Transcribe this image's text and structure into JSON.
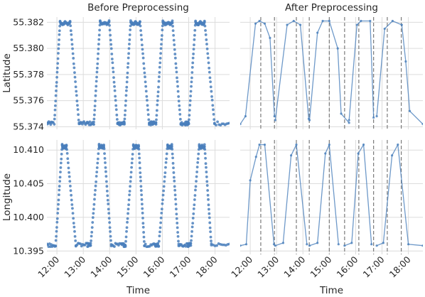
{
  "chart_data": [
    {
      "type": "scatter",
      "panel": "top-left",
      "title": "Before Preprocessing",
      "ylabel": "Latitude",
      "xlabel": "",
      "yticks": [
        "55.374",
        "55.376",
        "55.378",
        "55.380",
        "55.382"
      ],
      "xticks": [],
      "ylim": [
        55.3738,
        55.3824
      ],
      "xlim": [
        11.62,
        18.55
      ],
      "grid": true,
      "color": "#4a7fbc",
      "cycles": [
        {
          "low1": [
            11.62,
            11.86
          ],
          "rise": [
            11.9,
            12.12
          ],
          "high": [
            12.12,
            12.5
          ],
          "fall": [
            12.5,
            12.84
          ],
          "low2": [
            12.84,
            13.15
          ]
        },
        {
          "low1": [
            13.15,
            13.4
          ],
          "rise": [
            13.4,
            13.64
          ],
          "high": [
            13.64,
            13.98
          ],
          "fall": [
            13.98,
            14.3
          ],
          "low2": [
            14.3,
            14.46
          ]
        },
        {
          "low1": [
            14.46,
            14.56
          ],
          "rise": [
            14.56,
            14.8
          ],
          "high": [
            14.8,
            15.15
          ],
          "fall": [
            15.15,
            15.5
          ],
          "low2": [
            15.5,
            15.65
          ]
        },
        {
          "low1": [
            15.65,
            15.76
          ],
          "rise": [
            15.76,
            16.02
          ],
          "high": [
            16.02,
            16.38
          ],
          "fall": [
            16.38,
            16.7
          ],
          "low2": [
            16.7,
            16.88
          ]
        },
        {
          "low1": [
            16.88,
            17.0
          ],
          "rise": [
            17.0,
            17.26
          ],
          "high": [
            17.26,
            17.6
          ],
          "fall": [
            17.6,
            17.98
          ],
          "low2": [
            17.98,
            18.55
          ]
        }
      ],
      "low_value": 55.3742,
      "high_value": 55.3821
    },
    {
      "type": "line",
      "panel": "top-right",
      "title": "After Preprocessing",
      "ylabel": "",
      "xlabel": "",
      "yticks": [],
      "xticks": [],
      "ylim": [
        55.3738,
        55.3824
      ],
      "xlim": [
        11.62,
        18.55
      ],
      "grid": true,
      "color": "#4a7fbc",
      "vlines": [
        12.4,
        12.92,
        13.75,
        14.24,
        15.0,
        15.58,
        16.12,
        16.68,
        17.2,
        17.73
      ],
      "vline_color": "#7a7a7a",
      "segments": [
        [
          [
            11.62,
            55.3742
          ],
          [
            11.82,
            55.3748
          ],
          [
            12.2,
            55.3819
          ],
          [
            12.35,
            55.3821
          ],
          [
            12.55,
            55.3819
          ],
          [
            12.75,
            55.3808
          ],
          [
            12.92,
            55.3748
          ]
        ],
        [
          [
            12.95,
            55.3745
          ],
          [
            13.4,
            55.3818
          ],
          [
            13.65,
            55.3821
          ],
          [
            13.9,
            55.3818
          ],
          [
            14.22,
            55.3746
          ]
        ],
        [
          [
            14.25,
            55.3745
          ],
          [
            14.55,
            55.3812
          ],
          [
            14.75,
            55.3821
          ],
          [
            15.0,
            55.3821
          ],
          [
            15.32,
            55.38
          ],
          [
            15.45,
            55.375
          ],
          [
            15.75,
            55.3743
          ]
        ],
        [
          [
            15.75,
            55.3745
          ],
          [
            16.05,
            55.3818
          ],
          [
            16.2,
            55.3821
          ],
          [
            16.55,
            55.3821
          ],
          [
            16.68,
            55.3747
          ]
        ],
        [
          [
            16.8,
            55.3748
          ],
          [
            17.1,
            55.3815
          ],
          [
            17.4,
            55.3821
          ],
          [
            17.75,
            55.3818
          ],
          [
            17.9,
            55.379
          ],
          [
            18.05,
            55.3752
          ],
          [
            18.55,
            55.3742
          ]
        ]
      ]
    },
    {
      "type": "scatter",
      "panel": "bottom-left",
      "title": "",
      "ylabel": "Longitude",
      "xlabel": "Time",
      "yticks": [
        "10.395",
        "10.400",
        "10.405",
        "10.410"
      ],
      "xticks": [
        "12:00",
        "13:00",
        "14:00",
        "15:00",
        "16:00",
        "17:00",
        "18:00"
      ],
      "xtick_values": [
        12,
        13,
        14,
        15,
        16,
        17,
        18
      ],
      "ylim": [
        10.3945,
        10.4115
      ],
      "xlim": [
        11.62,
        18.55
      ],
      "grid": true,
      "color": "#4a7fbc",
      "cycles": [
        {
          "low1": [
            11.62,
            11.95
          ],
          "rise": [
            11.95,
            12.2
          ],
          "high": [
            12.2,
            12.36
          ],
          "fall": [
            12.36,
            12.72
          ],
          "low2": [
            12.72,
            13.15
          ]
        },
        {
          "low1": [
            13.15,
            13.28
          ],
          "rise": [
            13.28,
            13.6
          ],
          "high": [
            13.6,
            13.78
          ],
          "fall": [
            13.78,
            14.06
          ],
          "low2": [
            14.06,
            14.46
          ]
        },
        {
          "low1": [
            14.46,
            14.6
          ],
          "rise": [
            14.6,
            14.9
          ],
          "high": [
            14.9,
            15.1
          ],
          "fall": [
            15.1,
            15.32
          ],
          "low2": [
            15.32,
            15.72
          ]
        },
        {
          "low1": [
            15.72,
            15.86
          ],
          "rise": [
            15.86,
            16.2
          ],
          "high": [
            16.2,
            16.36
          ],
          "fall": [
            16.36,
            16.62
          ],
          "low2": [
            16.62,
            16.96
          ]
        },
        {
          "low1": [
            16.96,
            17.08
          ],
          "rise": [
            17.08,
            17.4
          ],
          "high": [
            17.4,
            17.6
          ],
          "fall": [
            17.6,
            17.86
          ],
          "low2": [
            17.86,
            18.55
          ]
        }
      ],
      "low_value": 10.3958,
      "high_value": 10.4108
    },
    {
      "type": "line",
      "panel": "bottom-right",
      "title": "",
      "ylabel": "",
      "xlabel": "Time",
      "yticks": [],
      "xticks": [
        "12:00",
        "13:00",
        "14:00",
        "15:00",
        "16:00",
        "17:00",
        "18:00"
      ],
      "xtick_values": [
        12,
        13,
        14,
        15,
        16,
        17,
        18
      ],
      "ylim": [
        10.3945,
        10.4115
      ],
      "xlim": [
        11.62,
        18.55
      ],
      "grid": true,
      "color": "#4a7fbc",
      "vlines": [
        12.4,
        12.92,
        13.75,
        14.24,
        15.0,
        15.58,
        16.12,
        16.68,
        17.2,
        17.73
      ],
      "vline_color": "#7a7a7a",
      "segments": [
        [
          [
            11.62,
            10.3958
          ],
          [
            11.85,
            10.396
          ],
          [
            12.0,
            10.4055
          ],
          [
            12.22,
            10.409
          ],
          [
            12.35,
            10.4108
          ],
          [
            12.55,
            10.4108
          ],
          [
            12.9,
            10.396
          ]
        ],
        [
          [
            12.95,
            10.3958
          ],
          [
            13.25,
            10.3962
          ],
          [
            13.55,
            10.4092
          ],
          [
            13.75,
            10.4108
          ],
          [
            14.15,
            10.396
          ]
        ],
        [
          [
            14.25,
            10.3958
          ],
          [
            14.55,
            10.3962
          ],
          [
            14.85,
            10.4095
          ],
          [
            15.0,
            10.4108
          ],
          [
            15.35,
            10.396
          ]
        ],
        [
          [
            15.58,
            10.3958
          ],
          [
            15.85,
            10.3962
          ],
          [
            16.1,
            10.4095
          ],
          [
            16.3,
            10.4108
          ],
          [
            16.6,
            10.396
          ]
        ],
        [
          [
            16.8,
            10.3958
          ],
          [
            17.05,
            10.3962
          ],
          [
            17.38,
            10.4092
          ],
          [
            17.6,
            10.4108
          ],
          [
            18.0,
            10.396
          ],
          [
            18.55,
            10.3958
          ]
        ]
      ]
    }
  ]
}
